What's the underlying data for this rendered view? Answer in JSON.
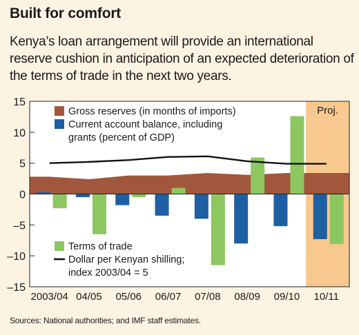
{
  "title": "Built for comfort",
  "subtitle": "Kenya’s loan arrangement will provide an international reserve cushion in anticipation of an expected deterioration of the terms of trade in the next two years.",
  "source": "Sources: National authorities; and IMF staff estimates.",
  "colors": {
    "reserves": "#a0573c",
    "current_account": "#1f5fa3",
    "terms_of_trade": "#8cc760",
    "exchange_rate": "#111111",
    "projection_shade": "#f8c98f",
    "plot_bg": "#ffffff"
  },
  "chart_data": {
    "type": "bar",
    "categories": [
      "2003/04",
      "04/05",
      "05/06",
      "06/07",
      "07/08",
      "08/09",
      "09/10",
      "10/11"
    ],
    "ylim": [
      -15,
      15
    ],
    "yticks": [
      15,
      10,
      5,
      0,
      -5,
      -10,
      -15
    ],
    "ytick_labels": [
      "15",
      "10",
      "5",
      "0",
      "–5",
      "–10",
      "–15"
    ],
    "projection_label": "Proj.",
    "projection_categories": [
      "10/11"
    ],
    "series": [
      {
        "name": "Gross reserves (in months of imports)",
        "kind": "area",
        "values": [
          2.8,
          2.4,
          3.0,
          3.0,
          3.4,
          3.1,
          3.4,
          3.4
        ]
      },
      {
        "name": "Current account balance, including grants (percent of GDP)",
        "kind": "bar",
        "values": [
          0.3,
          -0.5,
          -1.8,
          -3.5,
          -4.0,
          -8.0,
          -5.2,
          -7.3
        ]
      },
      {
        "name": "Terms of trade",
        "kind": "bar",
        "values": [
          -2.3,
          -6.5,
          -0.5,
          1.0,
          -11.5,
          5.9,
          12.6,
          -8.1
        ]
      },
      {
        "name": "Dollar per Kenyan shilling; index 2003/04 = 5",
        "kind": "line",
        "values": [
          5.0,
          5.2,
          5.5,
          6.0,
          6.1,
          5.3,
          4.9,
          4.9
        ]
      }
    ],
    "legend": {
      "top": [
        {
          "lines": [
            "Gross reserves (in months of imports)"
          ],
          "series": 0
        },
        {
          "lines": [
            "Current account balance, including",
            "grants (percent of GDP)"
          ],
          "series": 1
        }
      ],
      "bottom": [
        {
          "lines": [
            "Terms of trade"
          ],
          "series": 2
        },
        {
          "lines": [
            "Dollar per Kenyan shilling;",
            "index 2003/04 = 5"
          ],
          "series": 3
        }
      ]
    }
  }
}
